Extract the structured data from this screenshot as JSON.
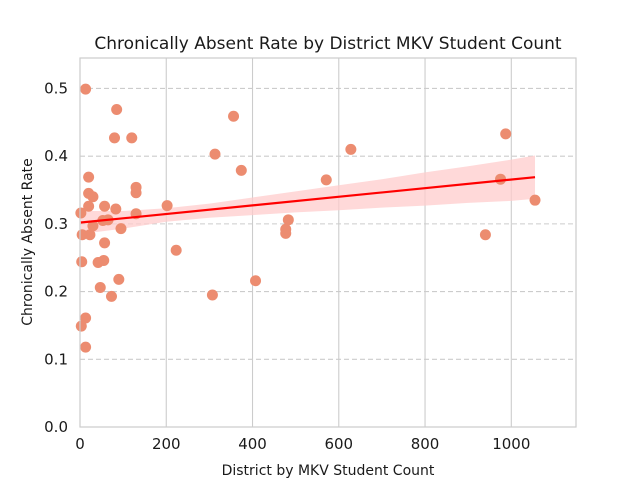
{
  "chart_data": {
    "type": "scatter",
    "title": "Chronically Absent Rate by District MKV Student Count",
    "xlabel": "District by MKV Student Count",
    "ylabel": "Chronically Absent Rate",
    "xlim": [
      0,
      1150
    ],
    "ylim": [
      0,
      0.545
    ],
    "xticks": [
      0,
      200,
      400,
      600,
      800,
      1000
    ],
    "xtick_labels": [
      "0",
      "200",
      "400",
      "600",
      "800",
      "1000"
    ],
    "yticks": [
      0.0,
      0.1,
      0.2,
      0.3,
      0.4,
      0.5
    ],
    "ytick_labels": [
      "0.0",
      "0.1",
      "0.2",
      "0.3",
      "0.4",
      "0.5"
    ],
    "grid": {
      "x": "solid",
      "y": "dashed"
    },
    "colors": {
      "points": "#ec8c70",
      "regression_line": "#ff0000",
      "confidence_band": "#ffcccc",
      "grid": "#cccccc",
      "frame": "#cccccc"
    },
    "points": [
      {
        "x": 13,
        "y": 0.499
      },
      {
        "x": 85,
        "y": 0.469
      },
      {
        "x": 80,
        "y": 0.427
      },
      {
        "x": 120,
        "y": 0.427
      },
      {
        "x": 356,
        "y": 0.459
      },
      {
        "x": 987,
        "y": 0.433
      },
      {
        "x": 628,
        "y": 0.41
      },
      {
        "x": 313,
        "y": 0.403
      },
      {
        "x": 374,
        "y": 0.379
      },
      {
        "x": 20,
        "y": 0.369
      },
      {
        "x": 571,
        "y": 0.365
      },
      {
        "x": 975,
        "y": 0.366
      },
      {
        "x": 130,
        "y": 0.354
      },
      {
        "x": 130,
        "y": 0.346
      },
      {
        "x": 20,
        "y": 0.345
      },
      {
        "x": 30,
        "y": 0.34
      },
      {
        "x": 1055,
        "y": 0.335
      },
      {
        "x": 202,
        "y": 0.327
      },
      {
        "x": 20,
        "y": 0.326
      },
      {
        "x": 57,
        "y": 0.326
      },
      {
        "x": 83,
        "y": 0.322
      },
      {
        "x": 2,
        "y": 0.316
      },
      {
        "x": 130,
        "y": 0.315
      },
      {
        "x": 483,
        "y": 0.306
      },
      {
        "x": 53,
        "y": 0.305
      },
      {
        "x": 65,
        "y": 0.306
      },
      {
        "x": 30,
        "y": 0.297
      },
      {
        "x": 95,
        "y": 0.293
      },
      {
        "x": 477,
        "y": 0.292
      },
      {
        "x": 477,
        "y": 0.286
      },
      {
        "x": 5,
        "y": 0.284
      },
      {
        "x": 23,
        "y": 0.284
      },
      {
        "x": 940,
        "y": 0.284
      },
      {
        "x": 57,
        "y": 0.272
      },
      {
        "x": 223,
        "y": 0.261
      },
      {
        "x": 4,
        "y": 0.244
      },
      {
        "x": 42,
        "y": 0.243
      },
      {
        "x": 55,
        "y": 0.246
      },
      {
        "x": 90,
        "y": 0.218
      },
      {
        "x": 407,
        "y": 0.216
      },
      {
        "x": 47,
        "y": 0.206
      },
      {
        "x": 307,
        "y": 0.195
      },
      {
        "x": 73,
        "y": 0.193
      },
      {
        "x": 13,
        "y": 0.161
      },
      {
        "x": 3,
        "y": 0.149
      },
      {
        "x": 13,
        "y": 0.118
      }
    ],
    "regression": {
      "x_range": [
        2,
        1055
      ],
      "y_start": 0.302,
      "y_end": 0.369
    },
    "confidence_band": [
      {
        "x": 2,
        "lower": 0.285,
        "upper": 0.319
      },
      {
        "x": 100,
        "lower": 0.293,
        "upper": 0.319
      },
      {
        "x": 200,
        "lower": 0.303,
        "upper": 0.323
      },
      {
        "x": 300,
        "lower": 0.309,
        "upper": 0.33
      },
      {
        "x": 400,
        "lower": 0.313,
        "upper": 0.339
      },
      {
        "x": 500,
        "lower": 0.317,
        "upper": 0.348
      },
      {
        "x": 600,
        "lower": 0.32,
        "upper": 0.357
      },
      {
        "x": 700,
        "lower": 0.324,
        "upper": 0.366
      },
      {
        "x": 800,
        "lower": 0.327,
        "upper": 0.376
      },
      {
        "x": 900,
        "lower": 0.331,
        "upper": 0.385
      },
      {
        "x": 1000,
        "lower": 0.334,
        "upper": 0.395
      },
      {
        "x": 1055,
        "lower": 0.337,
        "upper": 0.401
      }
    ]
  }
}
